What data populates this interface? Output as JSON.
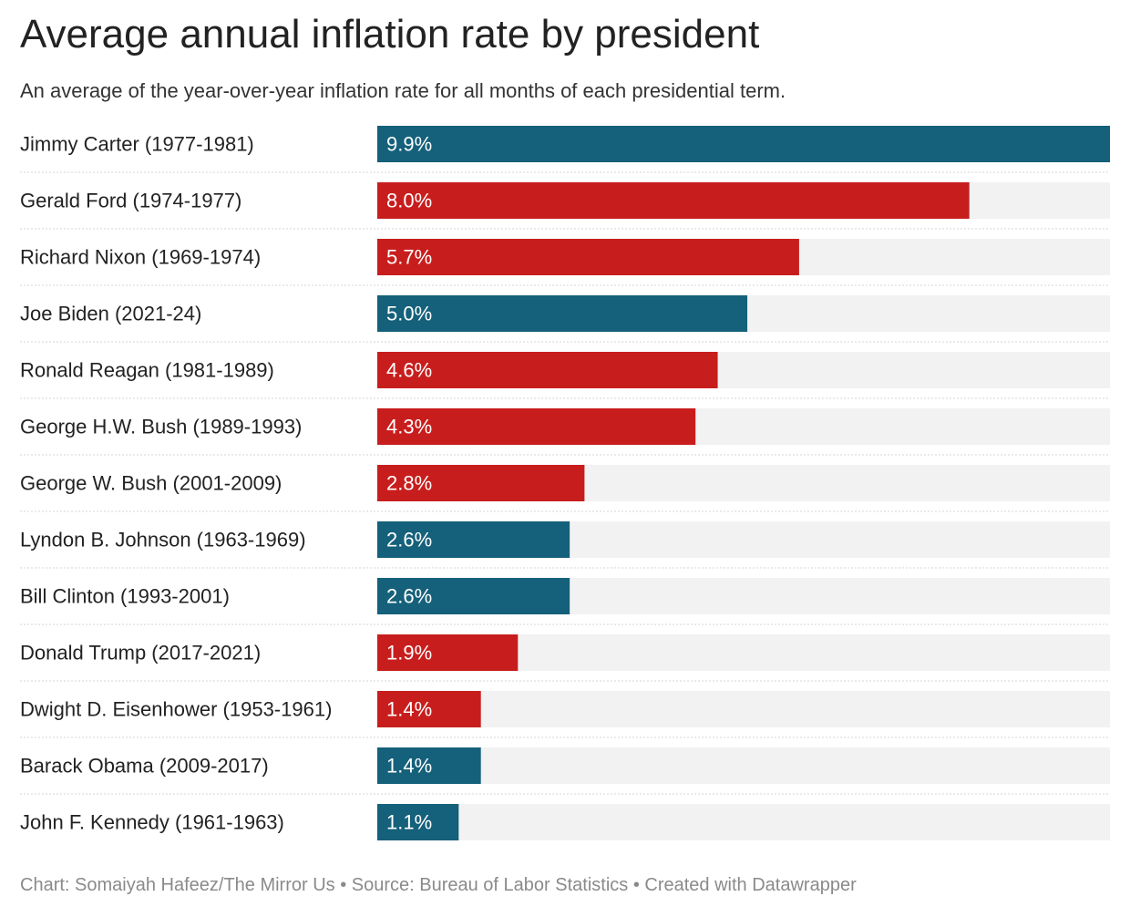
{
  "title": "Average annual inflation rate by president",
  "subtitle": "An average of the year-over-year inflation rate for all months of each presidential term.",
  "footer": "Chart: Somaiyah Hafeez/The Mirror Us • Source: Bureau of Labor Statistics • Created with Datawrapper",
  "colors": {
    "democrat": "#15607a",
    "republican": "#c71e1d",
    "track": "#f2f2f2",
    "divider": "#d6d6d6",
    "label": "#222222",
    "value_text": "#ffffff"
  },
  "chart_data": {
    "type": "bar",
    "orientation": "horizontal",
    "title": "Average annual inflation rate by president",
    "subtitle": "An average of the year-over-year inflation rate for all months of each presidential term.",
    "xlim": [
      0,
      9.9
    ],
    "value_suffix": "%",
    "categories": [
      "Jimmy Carter (1977-1981)",
      "Gerald Ford (1974-1977)",
      "Richard Nixon (1969-1974)",
      "Joe Biden (2021-24)",
      "Ronald Reagan (1981-1989)",
      "George H.W. Bush (1989-1993)",
      "George W. Bush (2001-2009)",
      "Lyndon B. Johnson (1963-1969)",
      "Bill Clinton (1993-2001)",
      "Donald Trump (2017-2021)",
      "Dwight D. Eisenhower (1953-1961)",
      "Barack Obama (2009-2017)",
      "John F. Kennedy (1961-1963)"
    ],
    "values": [
      9.9,
      8.0,
      5.7,
      5.0,
      4.6,
      4.3,
      2.8,
      2.6,
      2.6,
      1.9,
      1.4,
      1.4,
      1.1
    ],
    "value_labels": [
      "9.9%",
      "8.0%",
      "5.7%",
      "5.0%",
      "4.6%",
      "4.3%",
      "2.8%",
      "2.6%",
      "2.6%",
      "1.9%",
      "1.4%",
      "1.4%",
      "1.1%"
    ],
    "party_colors": [
      "#15607a",
      "#c71e1d",
      "#c71e1d",
      "#15607a",
      "#c71e1d",
      "#c71e1d",
      "#c71e1d",
      "#15607a",
      "#15607a",
      "#c71e1d",
      "#c71e1d",
      "#15607a",
      "#15607a"
    ]
  }
}
